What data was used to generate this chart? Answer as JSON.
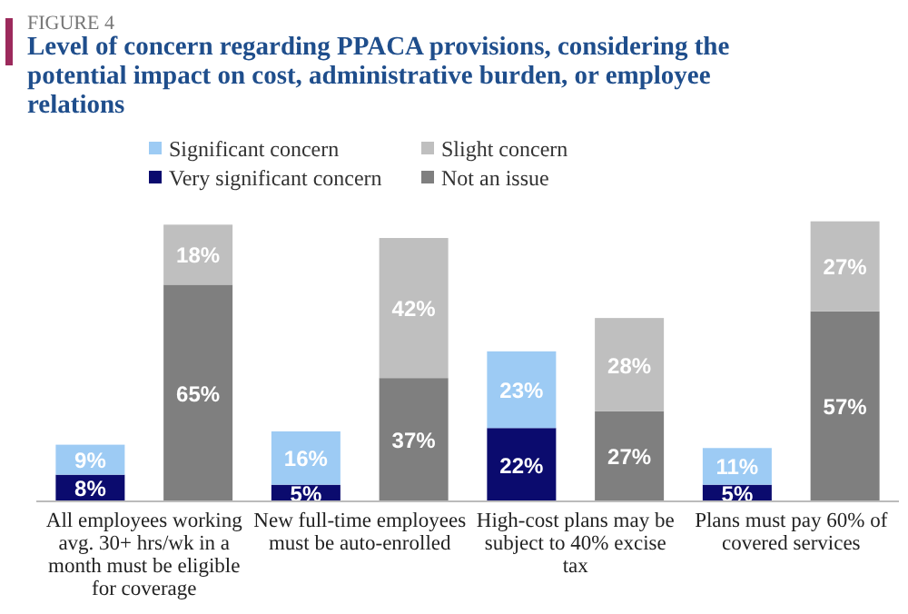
{
  "chart_data": {
    "type": "bar",
    "subtitle": "FIGURE 4",
    "title": "Level of concern regarding PPACA provisions, considering the potential impact on cost, administrative burden, or employee relations",
    "categories": [
      "All employees working avg. 30+ hrs/wk in a month must be eligible for coverage",
      null,
      "New full-time employees must be auto-enrolled",
      null,
      "High-cost plans may be subject to 40% excise tax",
      null,
      "Plans must pay 60% of covered services",
      null
    ],
    "stacked": true,
    "ylim": [
      0,
      85
    ],
    "legend": "top",
    "tick_labels": "x",
    "series": [
      {
        "name": "Very significant concern",
        "color": "#0b0b6e",
        "values": [
          8,
          null,
          5,
          null,
          22,
          null,
          5,
          null
        ],
        "value_labels": [
          "8%",
          null,
          "5%",
          null,
          "22%",
          null,
          "5%",
          null
        ]
      },
      {
        "name": "Significant concern",
        "color": "#9dcbf4",
        "values": [
          9,
          null,
          16,
          null,
          23,
          null,
          11,
          null
        ],
        "value_labels": [
          "9%",
          null,
          "16%",
          null,
          "23%",
          null,
          "11%",
          null
        ]
      },
      {
        "name": "Not an issue",
        "color": "#7f7f7f",
        "values": [
          null,
          65,
          null,
          37,
          null,
          27,
          null,
          57
        ],
        "value_labels": [
          null,
          "65%",
          null,
          "37%",
          null,
          "27%",
          null,
          "57%"
        ]
      },
      {
        "name": "Slight concern",
        "color": "#bfbfbf",
        "values": [
          null,
          18,
          null,
          42,
          null,
          28,
          null,
          27
        ],
        "value_labels": [
          null,
          "18%",
          null,
          "42%",
          null,
          "28%",
          null,
          "27%"
        ]
      }
    ]
  }
}
